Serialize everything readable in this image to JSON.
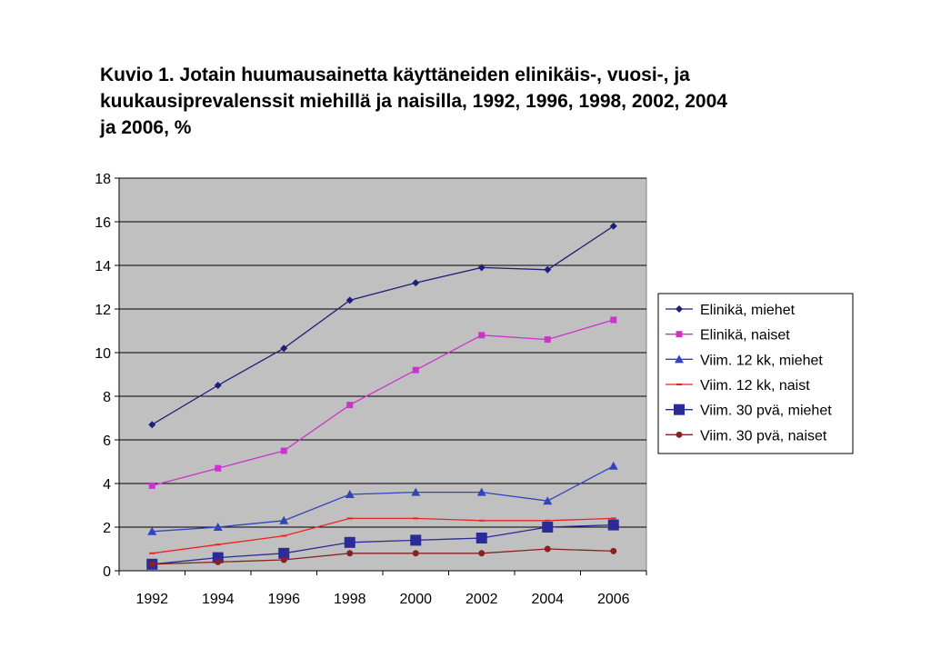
{
  "chart_data": {
    "type": "line",
    "title_lines": [
      "Kuvio 1. Jotain huumausainetta käyttäneiden elinikäis-, vuosi-, ja",
      "kuukausiprevalenssit miehillä ja naisilla, 1992, 1996, 1998, 2002, 2004",
      "ja 2006, %"
    ],
    "categories": [
      "1992",
      "1994",
      "1996",
      "1998",
      "2000",
      "2002",
      "2004",
      "2006"
    ],
    "yticks": [
      "0",
      "2",
      "4",
      "6",
      "8",
      "10",
      "12",
      "14",
      "16",
      "18"
    ],
    "ylim": [
      0,
      18
    ],
    "grid": true,
    "plot_background": "#c0c0c0",
    "legend_position": "right",
    "series": [
      {
        "name": "Elinikä, miehet",
        "color": "#1f1f7a",
        "marker": "diamond",
        "values": [
          6.7,
          8.5,
          10.2,
          12.4,
          13.2,
          13.9,
          13.8,
          15.8
        ]
      },
      {
        "name": "Elinikä, naiset",
        "color": "#cc33cc",
        "marker": "square",
        "values": [
          3.9,
          4.7,
          5.5,
          7.6,
          9.2,
          10.8,
          10.6,
          11.5
        ]
      },
      {
        "name": "Viim. 12 kk, miehet",
        "color": "#3344bb",
        "marker": "triangle",
        "values": [
          1.8,
          2.0,
          2.3,
          3.5,
          3.6,
          3.6,
          3.2,
          4.8
        ]
      },
      {
        "name": "Viim. 12 kk, naist",
        "color": "#ee2222",
        "marker": "dash",
        "values": [
          0.8,
          1.2,
          1.6,
          2.4,
          2.4,
          2.3,
          2.3,
          2.4
        ]
      },
      {
        "name": "Viim. 30 pvä, miehet",
        "color": "#2a2a99",
        "marker": "bigsquare",
        "values": [
          0.3,
          0.6,
          0.8,
          1.3,
          1.4,
          1.5,
          2.0,
          2.1
        ]
      },
      {
        "name": "Viim. 30 pvä, naiset",
        "color": "#882222",
        "marker": "circle",
        "values": [
          0.3,
          0.4,
          0.5,
          0.8,
          0.8,
          0.8,
          1.0,
          0.9
        ]
      }
    ]
  }
}
